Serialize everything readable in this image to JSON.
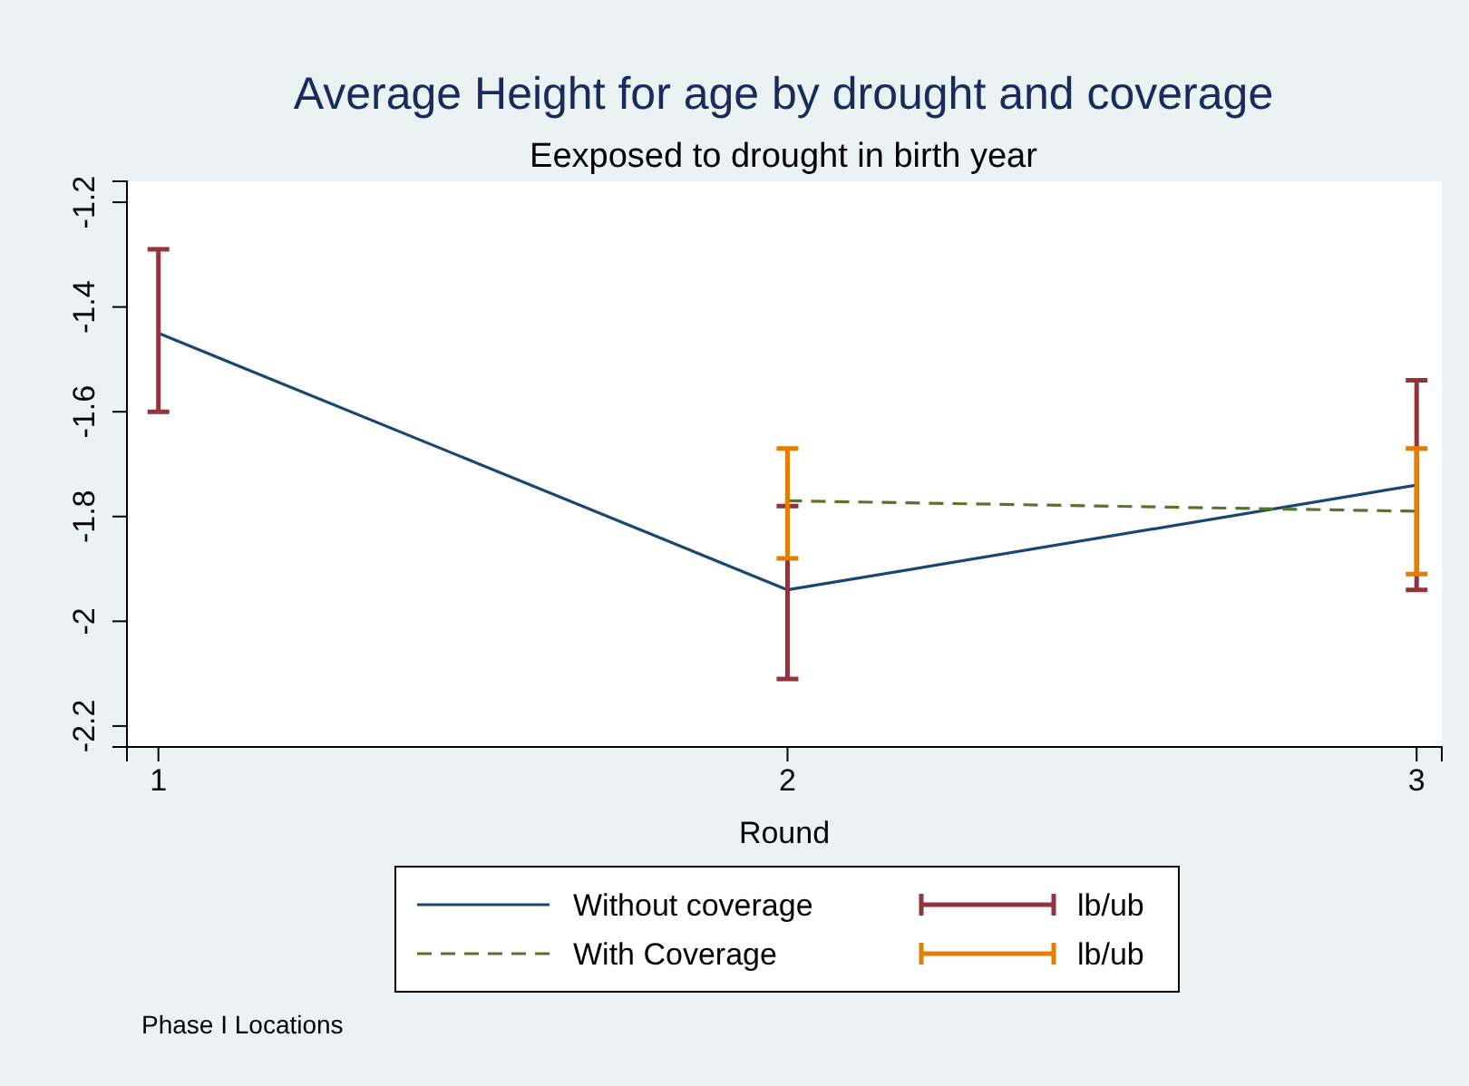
{
  "chart_data": {
    "type": "line",
    "title": "Average Height for age by drought and coverage",
    "subtitle": "Eexposed to drought in birth year",
    "xlabel": "Round",
    "x": [
      1,
      2,
      3
    ],
    "xlim": [
      0.95,
      3.04
    ],
    "xticks": [
      1,
      2,
      3
    ],
    "ylim": [
      -2.24,
      -1.16
    ],
    "yticks": [
      -1.2,
      -1.4,
      -1.6,
      -1.8,
      -2,
      -2.2
    ],
    "series": [
      {
        "name": "Without coverage",
        "color": "#1a476f",
        "line_style": "solid",
        "values": [
          -1.45,
          -1.94,
          -1.74
        ],
        "errors": [
          [
            -1.6,
            -1.29
          ],
          [
            -2.11,
            -1.78
          ],
          [
            -1.94,
            -1.54
          ]
        ]
      },
      {
        "name": "With Coverage",
        "color": "#55752f",
        "line_style": "dashed",
        "values": [
          null,
          -1.77,
          -1.79
        ],
        "errors": [
          null,
          [
            -1.88,
            -1.67
          ],
          [
            -1.91,
            -1.67
          ]
        ]
      },
      {
        "name": "lb/ub",
        "type": "scatter",
        "color": "#90353b",
        "values": [
          null,
          null,
          null
        ]
      },
      {
        "name": "lb/ub",
        "type": "scatter",
        "color": "#e37e00",
        "values": [
          null,
          null,
          null
        ]
      }
    ],
    "marker": "none",
    "grid": false,
    "legend": "bottom",
    "annotations": [
      "Phase I Locations"
    ]
  }
}
